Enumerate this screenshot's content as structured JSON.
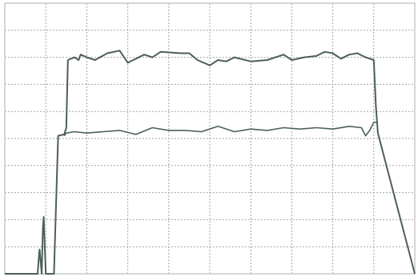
{
  "chart_data": {
    "type": "line",
    "title": "",
    "xlabel": "",
    "ylabel": "",
    "xlim": [
      0,
      1
    ],
    "ylim": [
      0,
      1
    ],
    "grid": true,
    "legend": "none",
    "colors": {
      "grid": "#a6a6a6",
      "frame": "#c8c8c8",
      "series": "#4d5f5b",
      "background": "#ffffff"
    },
    "series": [
      {
        "x": [
          0.0,
          0.04,
          0.038,
          0.04,
          0.041,
          0.08,
          0.084,
          0.085,
          0.09,
          0.093,
          0.095,
          0.1,
          0.12,
          0.13,
          0.145,
          0.15,
          0.154,
          0.17,
          0.18,
          0.185,
          0.2,
          0.22,
          0.25,
          0.28,
          0.3,
          0.34,
          0.36,
          0.38,
          0.43,
          0.45,
          0.47,
          0.5,
          0.52,
          0.54,
          0.56,
          0.6,
          0.64,
          0.68,
          0.7,
          0.73,
          0.76,
          0.78,
          0.8,
          0.82,
          0.84,
          0.86,
          0.88,
          0.9,
          0.905,
          0.91,
          1.0
        ],
        "y": [
          0.0,
          0.0,
          0.0,
          0.0,
          0.0,
          0.0,
          0.08,
          0.09,
          0.0,
          0.175,
          0.21,
          0.0,
          0.0,
          0.51,
          0.515,
          0.54,
          0.79,
          0.8,
          0.79,
          0.81,
          0.8,
          0.79,
          0.815,
          0.825,
          0.78,
          0.81,
          0.8,
          0.82,
          0.815,
          0.815,
          0.79,
          0.77,
          0.79,
          0.785,
          0.8,
          0.785,
          0.79,
          0.81,
          0.79,
          0.8,
          0.805,
          0.82,
          0.815,
          0.795,
          0.81,
          0.815,
          0.8,
          0.79,
          0.62,
          0.52,
          0.0
        ]
      },
      {
        "x": [
          0.145,
          0.15,
          0.17,
          0.2,
          0.24,
          0.28,
          0.32,
          0.36,
          0.4,
          0.44,
          0.48,
          0.52,
          0.56,
          0.6,
          0.64,
          0.68,
          0.72,
          0.76,
          0.8,
          0.84,
          0.87,
          0.88,
          0.89,
          0.9,
          0.91
        ],
        "y": [
          0.51,
          0.52,
          0.525,
          0.52,
          0.525,
          0.53,
          0.515,
          0.54,
          0.53,
          0.53,
          0.525,
          0.545,
          0.525,
          0.535,
          0.53,
          0.54,
          0.535,
          0.54,
          0.535,
          0.545,
          0.54,
          0.51,
          0.53,
          0.56,
          0.56
        ]
      }
    ],
    "ticks": {
      "x": [
        0.0,
        0.1,
        0.2,
        0.3,
        0.4,
        0.5,
        0.6,
        0.7,
        0.8,
        0.9,
        1.0
      ],
      "y": [
        0.0,
        0.1,
        0.2,
        0.3,
        0.4,
        0.5,
        0.6,
        0.7,
        0.8,
        0.9,
        1.0
      ]
    }
  }
}
